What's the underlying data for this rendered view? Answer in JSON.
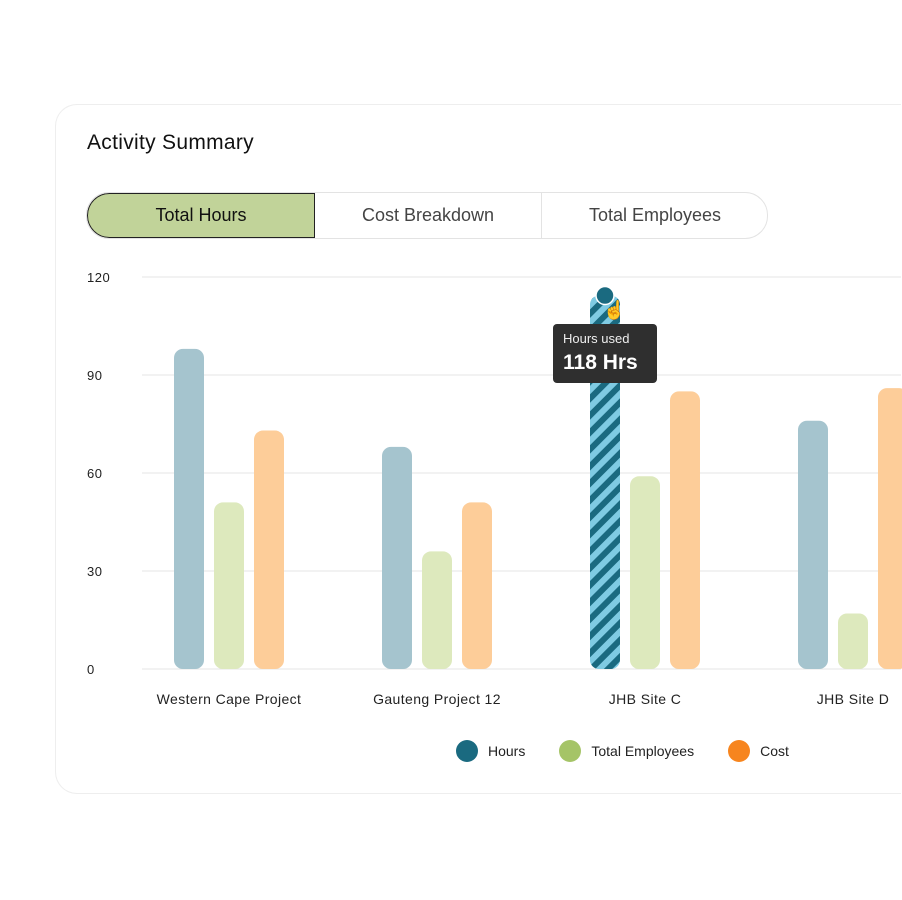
{
  "card": {
    "title": "Activity Summary"
  },
  "tabs": [
    {
      "label": "Total Hours",
      "active": true
    },
    {
      "label": "Cost Breakdown",
      "active": false
    },
    {
      "label": "Total Employees",
      "active": false
    }
  ],
  "tooltip": {
    "label": "Hours used",
    "value": "118 Hrs"
  },
  "chart_data": {
    "type": "bar",
    "categories": [
      "Western Cape Project",
      "Gauteng Project 12",
      "JHB Site C",
      "JHB Site D"
    ],
    "series": [
      {
        "name": "Hours",
        "color": "#1a6a80",
        "values": [
          98,
          68,
          118,
          76
        ]
      },
      {
        "name": "Total Employees",
        "color": "#a5c467",
        "values": [
          51,
          36,
          59,
          17
        ]
      },
      {
        "name": "Cost",
        "color": "#f7851e",
        "values": [
          73,
          51,
          85,
          86
        ]
      }
    ],
    "ylim": [
      0,
      120
    ],
    "yticks": [
      0,
      30,
      60,
      90,
      120
    ],
    "grid": true,
    "highlighted": {
      "category": "JHB Site C",
      "series": "Hours"
    },
    "legend_position": "bottom"
  }
}
